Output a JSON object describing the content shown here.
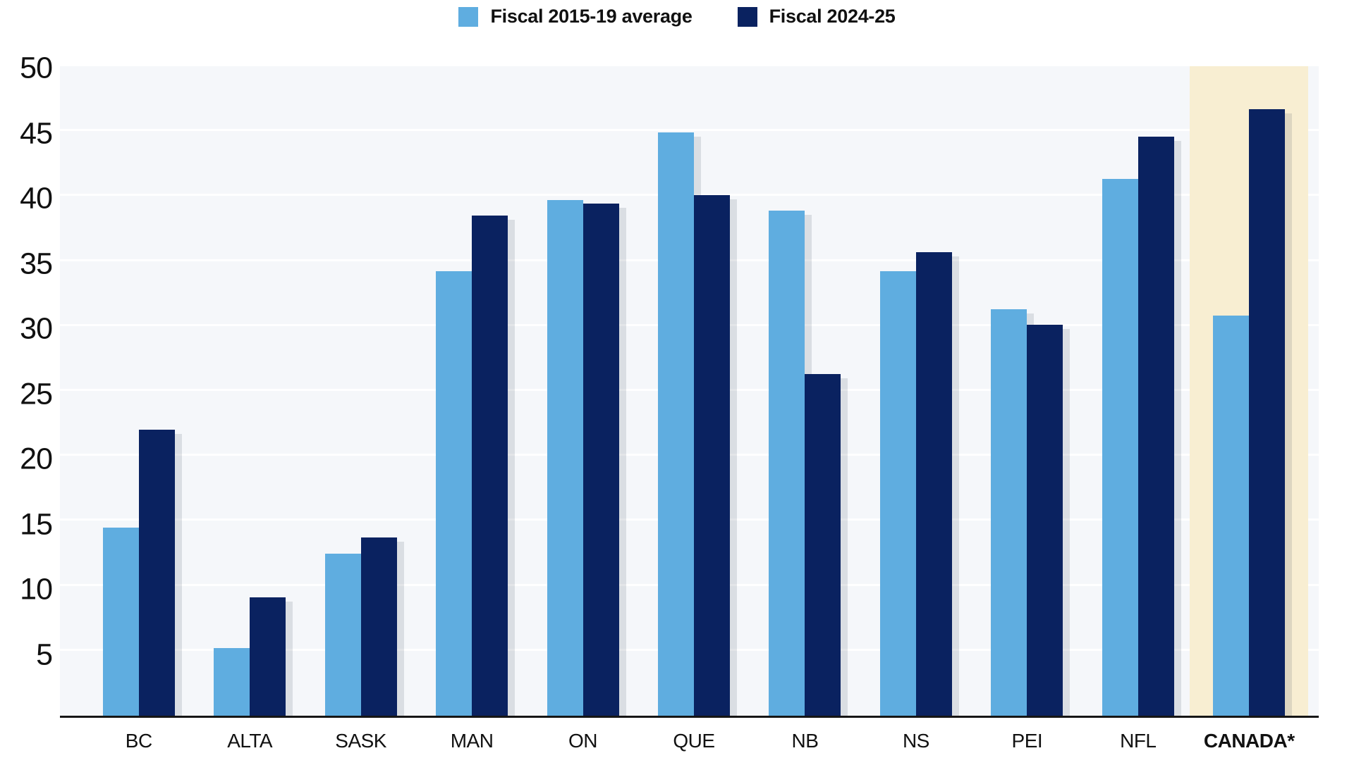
{
  "chart_data": {
    "type": "bar",
    "title": "",
    "xlabel": "",
    "ylabel": "",
    "categories": [
      "BC",
      "ALTA",
      "SASK",
      "MAN",
      "ON",
      "QUE",
      "NB",
      "NS",
      "PEI",
      "NFL",
      "CANADA*"
    ],
    "series": [
      {
        "name": "Fiscal 2015-19 average",
        "color": "#5FADE0",
        "values": [
          14.5,
          5.2,
          12.5,
          34.2,
          39.7,
          44.9,
          38.9,
          34.2,
          31.3,
          41.3,
          30.8
        ]
      },
      {
        "name": "Fiscal 2024-25",
        "color": "#0A2260",
        "values": [
          22.0,
          9.1,
          13.7,
          38.5,
          39.4,
          40.1,
          26.3,
          35.7,
          30.1,
          44.6,
          46.7
        ]
      }
    ],
    "ylim": [
      0,
      50
    ],
    "yticks": [
      5,
      10,
      15,
      20,
      25,
      30,
      35,
      40,
      45,
      50
    ],
    "grid": true,
    "legend_position": "top-center",
    "highlight": {
      "category": "CANADA*",
      "color": "#F8EED2"
    },
    "colors": {
      "plot_background": "#F5F7FA",
      "gridline": "#FFFFFF",
      "axis_line": "#161616",
      "text": "#111111",
      "bar_shadow": "rgba(60,70,90,0.14)"
    }
  }
}
